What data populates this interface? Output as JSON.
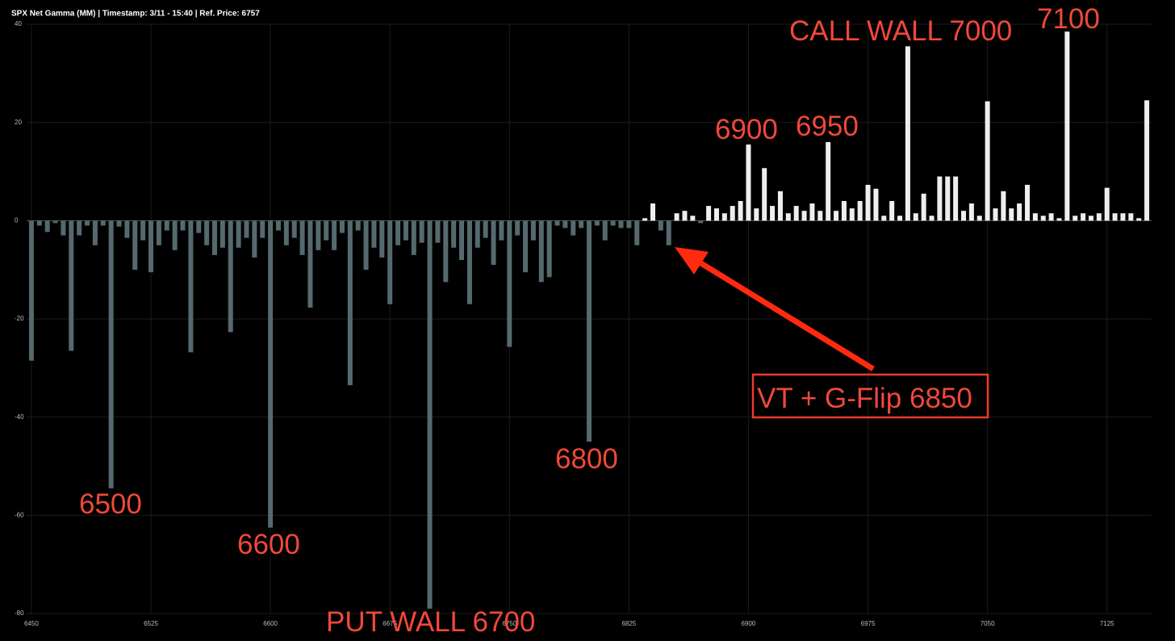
{
  "chart_data": {
    "type": "bar",
    "title": "SPX Net Gamma (MM) | Timestamp: 3/11 - 15:40  | Ref. Price: 6757",
    "x": [
      6450,
      6455,
      6460,
      6465,
      6470,
      6475,
      6480,
      6485,
      6490,
      6495,
      6500,
      6505,
      6510,
      6515,
      6520,
      6525,
      6530,
      6535,
      6540,
      6545,
      6550,
      6555,
      6560,
      6565,
      6570,
      6575,
      6580,
      6585,
      6590,
      6595,
      6600,
      6605,
      6610,
      6615,
      6620,
      6625,
      6630,
      6635,
      6640,
      6645,
      6650,
      6655,
      6660,
      6665,
      6670,
      6675,
      6680,
      6685,
      6690,
      6695,
      6700,
      6705,
      6710,
      6715,
      6720,
      6725,
      6730,
      6735,
      6740,
      6745,
      6750,
      6755,
      6760,
      6765,
      6770,
      6775,
      6780,
      6785,
      6790,
      6795,
      6800,
      6805,
      6810,
      6815,
      6820,
      6825,
      6830,
      6835,
      6840,
      6845,
      6850,
      6855,
      6860,
      6865,
      6870,
      6875,
      6880,
      6885,
      6890,
      6895,
      6900,
      6905,
      6910,
      6915,
      6920,
      6925,
      6930,
      6935,
      6940,
      6945,
      6950,
      6955,
      6960,
      6965,
      6970,
      6975,
      6980,
      6985,
      6990,
      6995,
      7000,
      7005,
      7010,
      7015,
      7020,
      7025,
      7030,
      7035,
      7040,
      7045,
      7050,
      7055,
      7060,
      7065,
      7070,
      7075,
      7080,
      7085,
      7090,
      7095,
      7100,
      7105,
      7110,
      7115,
      7120,
      7125,
      7130,
      7135,
      7140,
      7145,
      7150
    ],
    "values": [
      -28.5,
      -1,
      -2.3,
      -0.5,
      -3,
      -26.5,
      -3,
      -1,
      -5,
      -1,
      -54.5,
      -1.2,
      -3.5,
      -10,
      -4,
      -10.5,
      -5,
      -2,
      -6,
      -2,
      -26.8,
      -2.5,
      -5,
      -7,
      -5.5,
      -22.7,
      -5.5,
      -3.5,
      -7.5,
      -3.5,
      -62.5,
      -2,
      -5,
      -3.5,
      -7,
      -17.7,
      -6,
      -4,
      -6,
      -2.5,
      -33.5,
      -2,
      -10,
      -5.5,
      -7.5,
      -17,
      -5,
      -4,
      -7,
      -4.5,
      -79,
      -4.5,
      -12.5,
      -5.5,
      -8,
      -17,
      -5.5,
      -3.5,
      -9,
      -4,
      -25.7,
      -3,
      -10.5,
      -4,
      -12.5,
      -11.5,
      -1,
      -1.5,
      -3,
      -1.5,
      -45,
      -1,
      -4,
      -1,
      -1.5,
      -1.5,
      -5,
      0.5,
      3.5,
      -2,
      -5,
      1.5,
      2,
      1,
      -0.5,
      3,
      2.5,
      1.5,
      3,
      4,
      15.5,
      2.5,
      10.7,
      3,
      6,
      1.5,
      3,
      2,
      3.5,
      2,
      16,
      2,
      4,
      2.5,
      4,
      7.3,
      6.5,
      1,
      4,
      1,
      35.5,
      1.5,
      5.5,
      1,
      9,
      9,
      9,
      2,
      3.5,
      1,
      24.3,
      2.5,
      6,
      2.5,
      3.5,
      7.3,
      1.5,
      1,
      1.5,
      0.5,
      38.5,
      1,
      1.5,
      1,
      1.5,
      6.7,
      1.5,
      1.5,
      1.5,
      0.5,
      24.5
    ],
    "color_negative": "#55696e",
    "color_positive": "#eeeeee",
    "xlim": [
      6447,
      7153
    ],
    "xticks": [
      6450,
      6525,
      6600,
      6675,
      6750,
      6825,
      6900,
      6975,
      7050,
      7125
    ],
    "ylim": [
      -80,
      40
    ],
    "yticks": [
      -80,
      -60,
      -40,
      -20,
      0,
      20,
      40
    ],
    "grid": true,
    "annotations": [
      "CALL WALL 7000",
      "7100",
      "6900",
      "6950",
      "6500",
      "6600",
      "PUT WALL 6700",
      "6800",
      "VT + G-Flip 6850"
    ]
  }
}
